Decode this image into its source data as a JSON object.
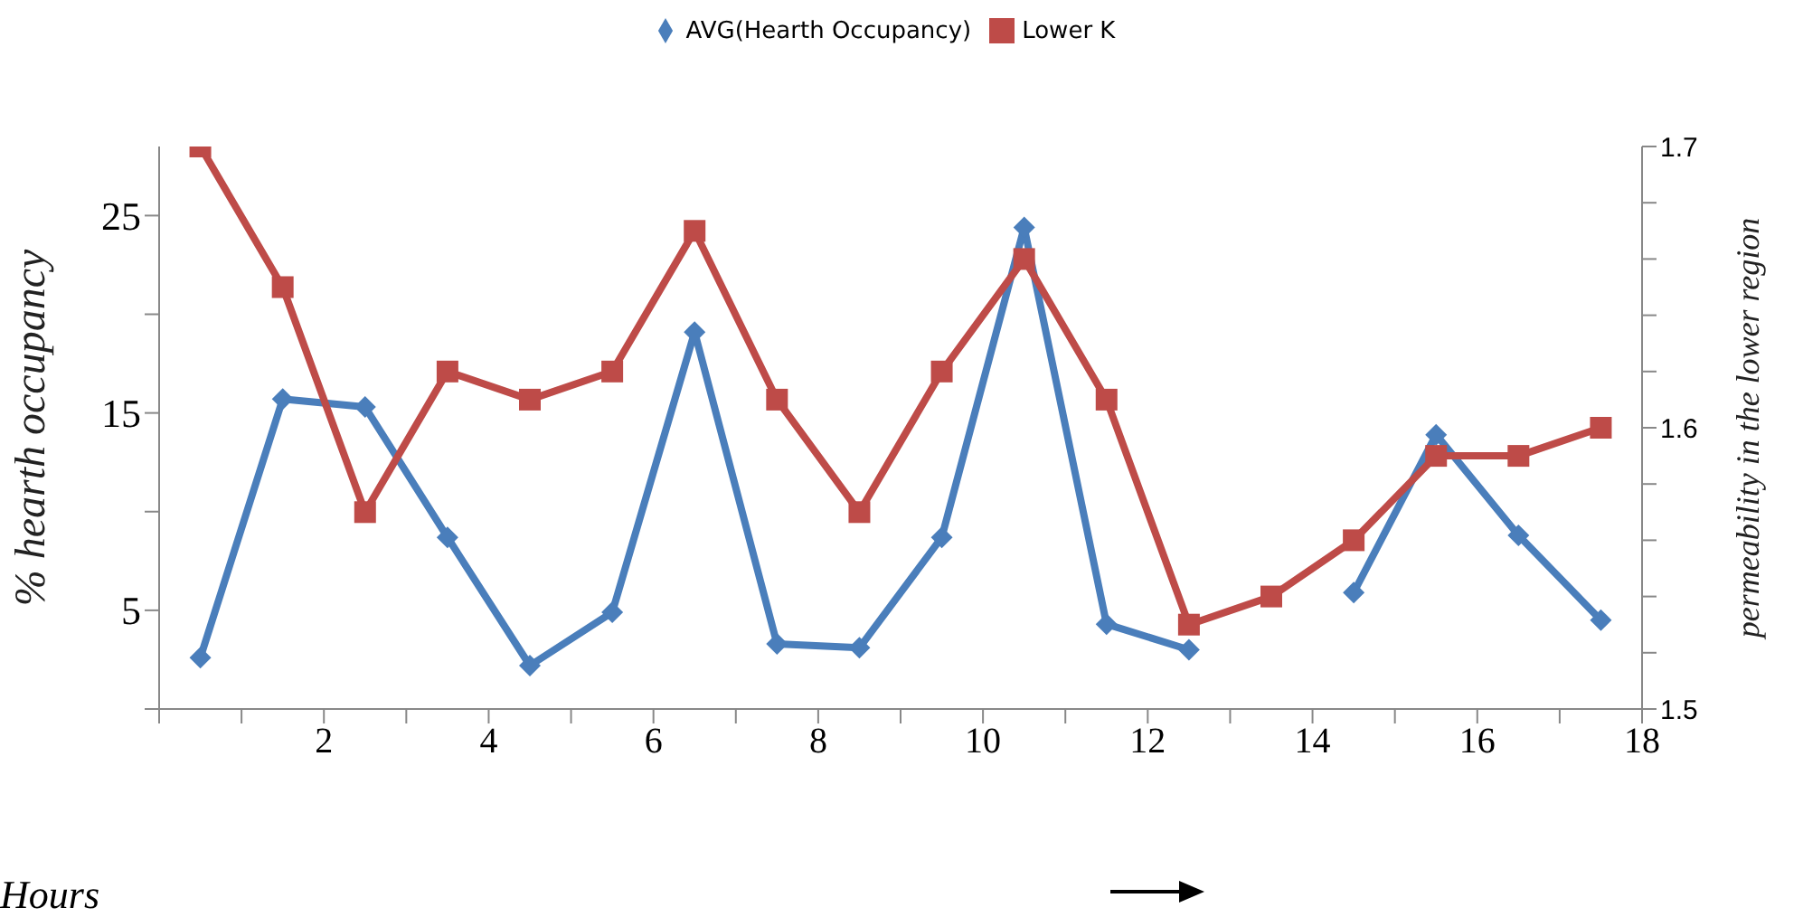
{
  "chart_data": {
    "type": "line",
    "xlabel": "Hours",
    "ylabel": "% hearth occupancy",
    "y2label": "permeability in the lower region",
    "x": [
      0.5,
      1.5,
      2.5,
      3.5,
      4.5,
      5.5,
      6.5,
      7.5,
      8.5,
      9.5,
      10.5,
      11.5,
      12.5,
      13.5,
      14.5,
      15.5,
      16.5,
      17.5
    ],
    "series": [
      {
        "name": "AVG(Hearth Occupancy)",
        "color": "#4a7ebb",
        "marker": "diamond",
        "values": [
          2.6,
          15.7,
          15.3,
          8.7,
          2.2,
          4.9,
          19.1,
          3.3,
          3.1,
          8.7,
          24.4,
          4.3,
          3.0,
          null,
          5.9,
          13.9,
          8.8,
          4.5
        ]
      },
      {
        "name": "Lower K",
        "color": "#be4b48",
        "marker": "square",
        "axis": "y2",
        "values": [
          1.7,
          1.65,
          1.57,
          1.62,
          1.61,
          1.62,
          1.67,
          1.61,
          1.57,
          1.62,
          1.66,
          1.61,
          1.53,
          1.54,
          1.56,
          1.59,
          1.59,
          1.6
        ]
      }
    ],
    "xlim": [
      0,
      18
    ],
    "xticks": [
      {
        "value": 0,
        "label": null
      },
      {
        "value": 1,
        "label": null
      },
      2,
      {
        "value": 3,
        "label": null
      },
      4,
      {
        "value": 5,
        "label": null
      },
      6,
      {
        "value": 7,
        "label": null
      },
      8,
      {
        "value": 9,
        "label": null
      },
      10,
      {
        "value": 11,
        "label": null
      },
      12,
      {
        "value": 13,
        "label": null
      },
      14,
      {
        "value": 15,
        "label": null
      },
      16,
      {
        "value": 17,
        "label": null
      },
      18
    ],
    "ylim": [
      0,
      28.5
    ],
    "yticks": [
      {
        "value": 0,
        "label": null
      },
      5,
      {
        "value": 10,
        "label": null
      },
      15,
      {
        "value": 20,
        "label": null
      },
      25
    ],
    "y2lim": [
      1.5,
      1.7
    ],
    "y2ticks": [
      1.5,
      {
        "value": 1.52,
        "label": null
      },
      {
        "value": 1.54,
        "label": null
      },
      {
        "value": 1.56,
        "label": null
      },
      {
        "value": 1.58,
        "label": null
      },
      1.6,
      {
        "value": 1.62,
        "label": null
      },
      {
        "value": 1.64,
        "label": null
      },
      {
        "value": 1.66,
        "label": null
      },
      {
        "value": 1.68,
        "label": null
      },
      1.7
    ],
    "grid": false,
    "legend": "top",
    "line_style": "solid"
  }
}
